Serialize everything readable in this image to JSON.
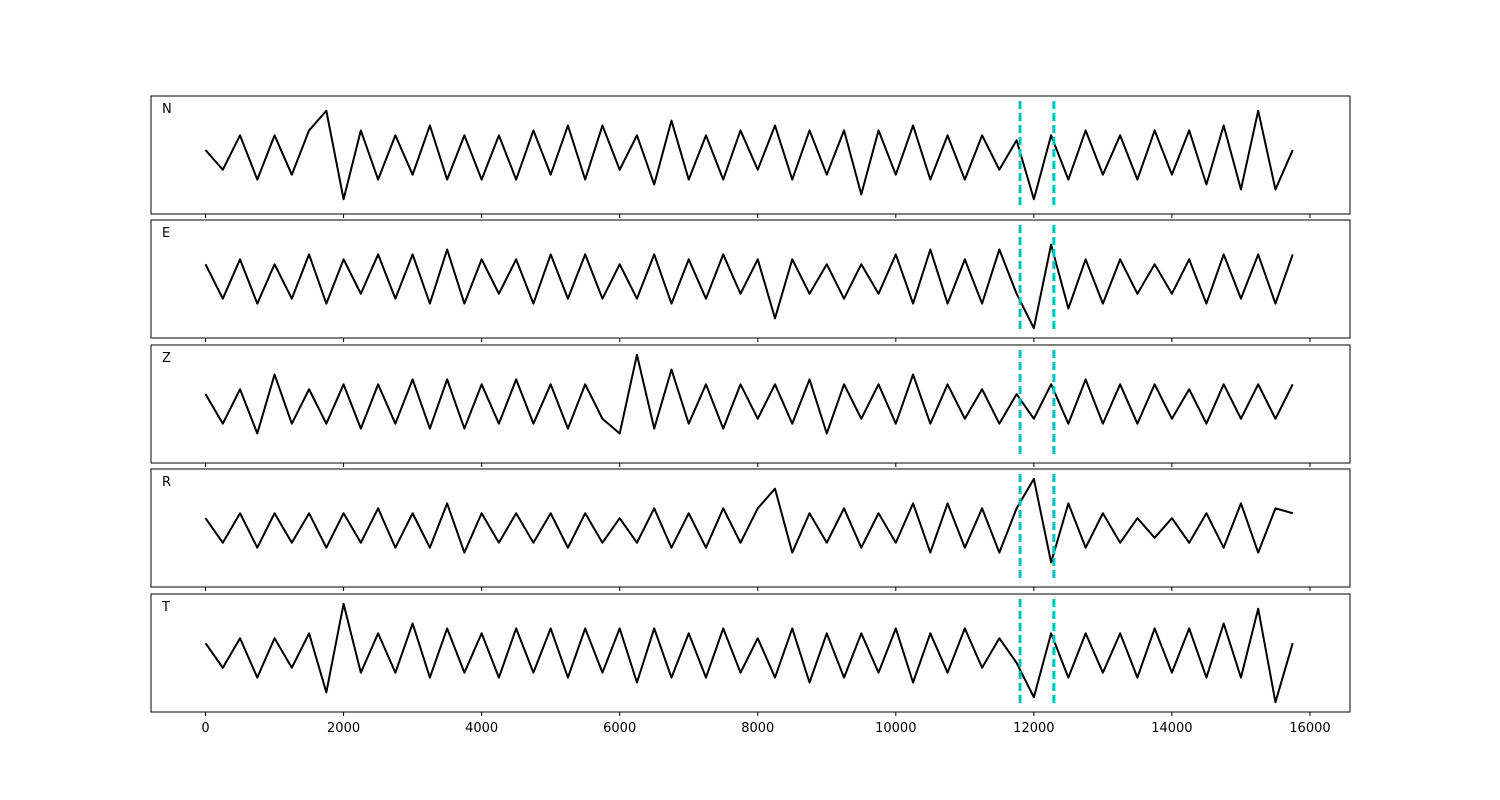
{
  "chart_data": [
    {
      "type": "line",
      "title": "N",
      "color": "#000000",
      "vline_color": "#00bfbf",
      "vlines": [
        11800,
        12290
      ],
      "xlim": [
        -790,
        16580
      ],
      "ylim": [
        -1.2,
        1.2
      ],
      "xticks": [
        0,
        2000,
        4000,
        6000,
        8000,
        10000,
        12000,
        14000,
        16000
      ],
      "x": [
        0,
        250,
        500,
        750,
        1000,
        1250,
        1500,
        1750,
        2000,
        2250,
        2500,
        2750,
        3000,
        3250,
        3500,
        3750,
        4000,
        4250,
        4500,
        4750,
        5000,
        5250,
        5500,
        5750,
        6000,
        6250,
        6500,
        6750,
        7000,
        7250,
        7500,
        7750,
        8000,
        8250,
        8500,
        8750,
        9000,
        9250,
        9500,
        9750,
        10000,
        10250,
        10500,
        10750,
        11000,
        11250,
        11500,
        11750,
        12000,
        12250,
        12500,
        12750,
        13000,
        13250,
        13500,
        13750,
        14000,
        14250,
        14500,
        14750,
        15000,
        15250,
        15500,
        15750
      ],
      "values": [
        0.1,
        -0.3,
        0.4,
        -0.5,
        0.4,
        -0.4,
        0.5,
        0.9,
        -0.9,
        0.5,
        -0.5,
        0.4,
        -0.4,
        0.6,
        -0.5,
        0.4,
        -0.5,
        0.4,
        -0.5,
        0.5,
        -0.4,
        0.6,
        -0.5,
        0.6,
        -0.3,
        0.4,
        -0.6,
        0.7,
        -0.5,
        0.4,
        -0.5,
        0.5,
        -0.3,
        0.6,
        -0.5,
        0.5,
        -0.4,
        0.5,
        -0.8,
        0.5,
        -0.4,
        0.6,
        -0.5,
        0.4,
        -0.5,
        0.4,
        -0.3,
        0.3,
        -0.9,
        0.4,
        -0.5,
        0.5,
        -0.4,
        0.4,
        -0.5,
        0.5,
        -0.4,
        0.5,
        -0.6,
        0.6,
        -0.7,
        0.9,
        -0.7,
        0.1
      ]
    },
    {
      "type": "line",
      "title": "E",
      "color": "#000000",
      "vline_color": "#00bfbf",
      "vlines": [
        11800,
        12290
      ],
      "xlim": [
        -790,
        16580
      ],
      "ylim": [
        -1.2,
        1.2
      ],
      "xticks": [
        0,
        2000,
        4000,
        6000,
        8000,
        10000,
        12000,
        14000,
        16000
      ],
      "x": [
        0,
        250,
        500,
        750,
        1000,
        1250,
        1500,
        1750,
        2000,
        2250,
        2500,
        2750,
        3000,
        3250,
        3500,
        3750,
        4000,
        4250,
        4500,
        4750,
        5000,
        5250,
        5500,
        5750,
        6000,
        6250,
        6500,
        6750,
        7000,
        7250,
        7500,
        7750,
        8000,
        8250,
        8500,
        8750,
        9000,
        9250,
        9500,
        9750,
        10000,
        10250,
        10500,
        10750,
        11000,
        11250,
        11500,
        11750,
        12000,
        12250,
        12500,
        12750,
        13000,
        13250,
        13500,
        13750,
        14000,
        14250,
        14500,
        14750,
        15000,
        15250,
        15500,
        15750
      ],
      "values": [
        0.3,
        -0.4,
        0.4,
        -0.5,
        0.3,
        -0.4,
        0.5,
        -0.5,
        0.4,
        -0.3,
        0.5,
        -0.4,
        0.5,
        -0.5,
        0.6,
        -0.5,
        0.4,
        -0.3,
        0.4,
        -0.5,
        0.5,
        -0.4,
        0.5,
        -0.4,
        0.3,
        -0.4,
        0.5,
        -0.5,
        0.4,
        -0.4,
        0.5,
        -0.3,
        0.4,
        -0.8,
        0.4,
        -0.3,
        0.3,
        -0.4,
        0.3,
        -0.3,
        0.5,
        -0.5,
        0.6,
        -0.5,
        0.4,
        -0.5,
        0.6,
        -0.3,
        -1.0,
        0.7,
        -0.6,
        0.4,
        -0.5,
        0.4,
        -0.3,
        0.3,
        -0.3,
        0.4,
        -0.5,
        0.5,
        -0.4,
        0.5,
        -0.5,
        0.5
      ]
    },
    {
      "type": "line",
      "title": "Z",
      "color": "#000000",
      "vline_color": "#00bfbf",
      "vlines": [
        11800,
        12290
      ],
      "xlim": [
        -790,
        16580
      ],
      "ylim": [
        -1.2,
        1.2
      ],
      "xticks": [
        0,
        2000,
        4000,
        6000,
        8000,
        10000,
        12000,
        14000,
        16000
      ],
      "x": [
        0,
        250,
        500,
        750,
        1000,
        1250,
        1500,
        1750,
        2000,
        2250,
        2500,
        2750,
        3000,
        3250,
        3500,
        3750,
        4000,
        4250,
        4500,
        4750,
        5000,
        5250,
        5500,
        5750,
        6000,
        6250,
        6500,
        6750,
        7000,
        7250,
        7500,
        7750,
        8000,
        8250,
        8500,
        8750,
        9000,
        9250,
        9500,
        9750,
        10000,
        10250,
        10500,
        10750,
        11000,
        11250,
        11500,
        11750,
        12000,
        12250,
        12500,
        12750,
        13000,
        13250,
        13500,
        13750,
        14000,
        14250,
        14500,
        14750,
        15000,
        15250,
        15500,
        15750
      ],
      "values": [
        0.2,
        -0.4,
        0.3,
        -0.6,
        0.6,
        -0.4,
        0.3,
        -0.4,
        0.4,
        -0.5,
        0.4,
        -0.4,
        0.5,
        -0.5,
        0.5,
        -0.5,
        0.4,
        -0.4,
        0.5,
        -0.4,
        0.4,
        -0.5,
        0.4,
        -0.3,
        -0.6,
        1.0,
        -0.5,
        0.7,
        -0.4,
        0.4,
        -0.5,
        0.4,
        -0.3,
        0.4,
        -0.4,
        0.5,
        -0.6,
        0.4,
        -0.3,
        0.4,
        -0.4,
        0.6,
        -0.4,
        0.4,
        -0.3,
        0.3,
        -0.4,
        0.2,
        -0.3,
        0.4,
        -0.4,
        0.5,
        -0.4,
        0.4,
        -0.4,
        0.4,
        -0.3,
        0.3,
        -0.4,
        0.4,
        -0.3,
        0.4,
        -0.3,
        0.4
      ]
    },
    {
      "type": "line",
      "title": "R",
      "color": "#000000",
      "vline_color": "#00bfbf",
      "vlines": [
        11800,
        12290
      ],
      "xlim": [
        -790,
        16580
      ],
      "ylim": [
        -1.2,
        1.2
      ],
      "xticks": [
        0,
        2000,
        4000,
        6000,
        8000,
        10000,
        12000,
        14000,
        16000
      ],
      "x": [
        0,
        250,
        500,
        750,
        1000,
        1250,
        1500,
        1750,
        2000,
        2250,
        2500,
        2750,
        3000,
        3250,
        3500,
        3750,
        4000,
        4250,
        4500,
        4750,
        5000,
        5250,
        5500,
        5750,
        6000,
        6250,
        6500,
        6750,
        7000,
        7250,
        7500,
        7750,
        8000,
        8250,
        8500,
        8750,
        9000,
        9250,
        9500,
        9750,
        10000,
        10250,
        10500,
        10750,
        11000,
        11250,
        11500,
        11750,
        12000,
        12250,
        12500,
        12750,
        13000,
        13250,
        13500,
        13750,
        14000,
        14250,
        14500,
        14750,
        15000,
        15250,
        15500,
        15750
      ],
      "values": [
        0.2,
        -0.3,
        0.3,
        -0.4,
        0.3,
        -0.3,
        0.3,
        -0.4,
        0.3,
        -0.3,
        0.4,
        -0.4,
        0.3,
        -0.4,
        0.5,
        -0.5,
        0.3,
        -0.3,
        0.3,
        -0.3,
        0.3,
        -0.4,
        0.3,
        -0.3,
        0.2,
        -0.3,
        0.4,
        -0.4,
        0.3,
        -0.4,
        0.4,
        -0.3,
        0.4,
        0.8,
        -0.5,
        0.3,
        -0.3,
        0.4,
        -0.4,
        0.3,
        -0.3,
        0.5,
        -0.5,
        0.5,
        -0.4,
        0.4,
        -0.5,
        0.4,
        1.0,
        -0.7,
        0.5,
        -0.4,
        0.3,
        -0.3,
        0.2,
        -0.2,
        0.2,
        -0.3,
        0.3,
        -0.4,
        0.5,
        -0.5,
        0.4,
        0.3
      ]
    },
    {
      "type": "line",
      "title": "T",
      "color": "#000000",
      "vline_color": "#00bfbf",
      "vlines": [
        11800,
        12290
      ],
      "xlim": [
        -790,
        16580
      ],
      "ylim": [
        -1.2,
        1.2
      ],
      "xticks": [
        0,
        2000,
        4000,
        6000,
        8000,
        10000,
        12000,
        14000,
        16000
      ],
      "x": [
        0,
        250,
        500,
        750,
        1000,
        1250,
        1500,
        1750,
        2000,
        2250,
        2500,
        2750,
        3000,
        3250,
        3500,
        3750,
        4000,
        4250,
        4500,
        4750,
        5000,
        5250,
        5500,
        5750,
        6000,
        6250,
        6500,
        6750,
        7000,
        7250,
        7500,
        7750,
        8000,
        8250,
        8500,
        8750,
        9000,
        9250,
        9500,
        9750,
        10000,
        10250,
        10500,
        10750,
        11000,
        11250,
        11500,
        11750,
        12000,
        12250,
        12500,
        12750,
        13000,
        13250,
        13500,
        13750,
        14000,
        14250,
        14500,
        14750,
        15000,
        15250,
        15500,
        15750
      ],
      "values": [
        0.2,
        -0.3,
        0.3,
        -0.5,
        0.3,
        -0.3,
        0.4,
        -0.8,
        1.0,
        -0.4,
        0.4,
        -0.4,
        0.6,
        -0.5,
        0.5,
        -0.4,
        0.4,
        -0.5,
        0.5,
        -0.4,
        0.5,
        -0.5,
        0.5,
        -0.4,
        0.5,
        -0.6,
        0.5,
        -0.5,
        0.4,
        -0.5,
        0.5,
        -0.4,
        0.3,
        -0.5,
        0.5,
        -0.6,
        0.4,
        -0.5,
        0.4,
        -0.4,
        0.5,
        -0.6,
        0.4,
        -0.4,
        0.5,
        -0.3,
        0.3,
        -0.2,
        -0.9,
        0.4,
        -0.5,
        0.4,
        -0.4,
        0.4,
        -0.5,
        0.5,
        -0.4,
        0.5,
        -0.5,
        0.6,
        -0.5,
        0.9,
        -1.0,
        0.2
      ]
    }
  ]
}
